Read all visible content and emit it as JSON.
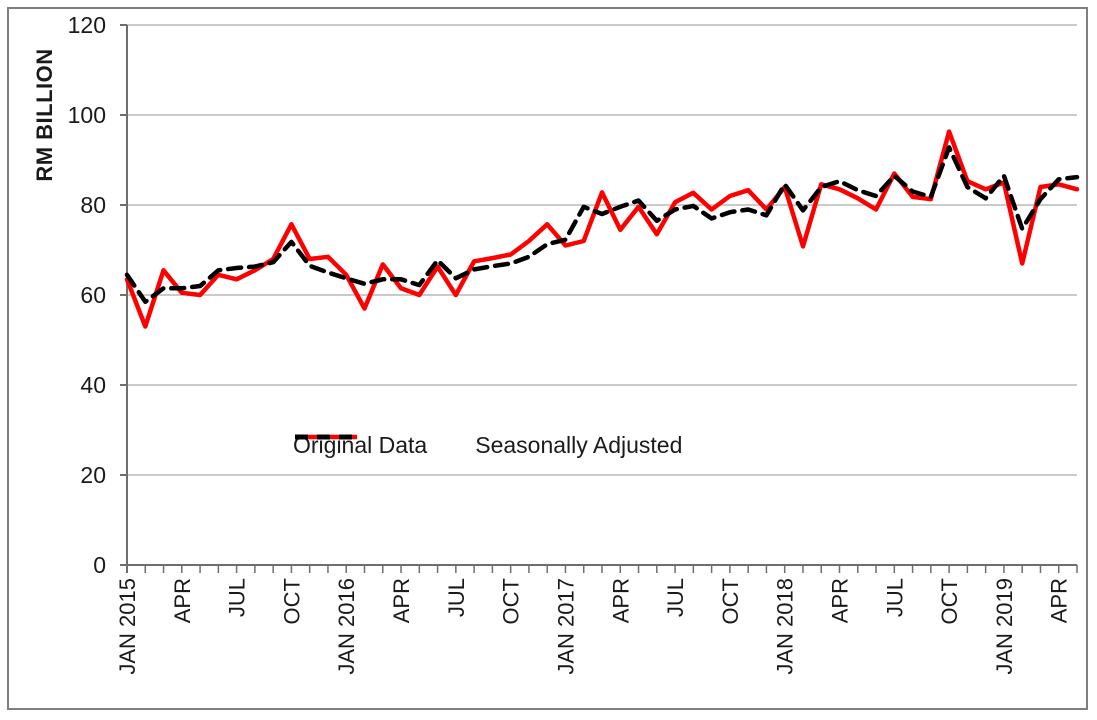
{
  "figure": {
    "background_color": "#FFFFFF",
    "border_color": "#7F7F7F",
    "grid_color": "#ABABAB",
    "axis_color": "#6E6E6E",
    "text_color": "#1A1A1A"
  },
  "chart_data": {
    "type": "line",
    "title": "",
    "xlabel": "",
    "ylabel": "RM BILLION",
    "ylim": [
      0,
      120
    ],
    "yticks": [
      0,
      20,
      40,
      60,
      80,
      100,
      120
    ],
    "grid": true,
    "legend_position": "center-of-plot",
    "categories": [
      "Jan 2015",
      "Feb 2015",
      "Mar 2015",
      "Apr 2015",
      "May 2015",
      "Jun 2015",
      "Jul 2015",
      "Aug 2015",
      "Sep 2015",
      "Oct 2015",
      "Nov 2015",
      "Dec 2015",
      "Jan 2016",
      "Feb 2016",
      "Mar 2016",
      "Apr 2016",
      "May 2016",
      "Jun 2016",
      "Jul 2016",
      "Aug 2016",
      "Sep 2016",
      "Oct 2016",
      "Nov 2016",
      "Dec 2016",
      "Jan 2017",
      "Feb 2017",
      "Mar 2017",
      "Apr 2017",
      "May 2017",
      "Jun 2017",
      "Jul 2017",
      "Aug 2017",
      "Sep 2017",
      "Oct 2017",
      "Nov 2017",
      "Dec 2017",
      "Jan 2018",
      "Feb 2018",
      "Mar 2018",
      "Apr 2018",
      "May 2018",
      "Jun 2018",
      "Jul 2018",
      "Aug 2018",
      "Sep 2018",
      "Oct 2018",
      "Nov 2018",
      "Dec 2018",
      "Jan 2019",
      "Feb 2019",
      "Mar 2019",
      "Apr 2019",
      "May 2019"
    ],
    "x_tick_labels": [
      {
        "index": 0,
        "label": "JAN 2015"
      },
      {
        "index": 3,
        "label": "APR"
      },
      {
        "index": 6,
        "label": "JUL"
      },
      {
        "index": 9,
        "label": "OCT"
      },
      {
        "index": 12,
        "label": "JAN 2016"
      },
      {
        "index": 15,
        "label": "APR"
      },
      {
        "index": 18,
        "label": "JUL"
      },
      {
        "index": 21,
        "label": "OCT"
      },
      {
        "index": 24,
        "label": "JAN 2017"
      },
      {
        "index": 27,
        "label": "APR"
      },
      {
        "index": 30,
        "label": "JUL"
      },
      {
        "index": 33,
        "label": "OCT"
      },
      {
        "index": 36,
        "label": "JAN 2018"
      },
      {
        "index": 39,
        "label": "APR"
      },
      {
        "index": 42,
        "label": "JUL"
      },
      {
        "index": 45,
        "label": "OCT"
      },
      {
        "index": 48,
        "label": "JAN 2019"
      },
      {
        "index": 51,
        "label": "APR"
      }
    ],
    "series": [
      {
        "name": "Original Data",
        "color": "#FF0000",
        "style": "solid",
        "values": [
          63.5,
          53.0,
          65.5,
          60.5,
          60.0,
          64.5,
          63.5,
          65.5,
          68.0,
          75.7,
          68.0,
          68.5,
          64.5,
          57.0,
          66.8,
          61.5,
          60.0,
          66.3,
          60.0,
          67.5,
          68.2,
          69.0,
          72.0,
          75.7,
          71.0,
          72.0,
          82.8,
          74.5,
          79.6,
          73.5,
          80.6,
          82.7,
          79.0,
          82.0,
          83.3,
          79.0,
          84.0,
          70.8,
          84.6,
          83.5,
          81.5,
          79.0,
          87.0,
          81.8,
          81.3,
          96.3,
          85.3,
          83.5,
          85.0,
          67.0,
          84.0,
          84.6,
          83.5
        ]
      },
      {
        "name": "Seasonally Adjusted",
        "color": "#000000",
        "style": "dashed",
        "values": [
          64.5,
          58.5,
          61.5,
          61.5,
          62.0,
          65.5,
          66.0,
          66.3,
          67.3,
          71.8,
          66.5,
          65.0,
          63.7,
          62.5,
          63.5,
          63.5,
          62.2,
          67.7,
          63.7,
          65.7,
          66.4,
          67.0,
          68.5,
          71.3,
          72.3,
          79.6,
          78.0,
          79.6,
          81.0,
          76.5,
          79.0,
          79.8,
          77.0,
          78.4,
          79.0,
          77.7,
          84.6,
          78.8,
          84.0,
          85.3,
          83.3,
          82.0,
          86.5,
          83.0,
          81.8,
          92.8,
          84.0,
          81.5,
          86.5,
          74.7,
          81.3,
          85.7,
          86.2
        ]
      }
    ]
  }
}
